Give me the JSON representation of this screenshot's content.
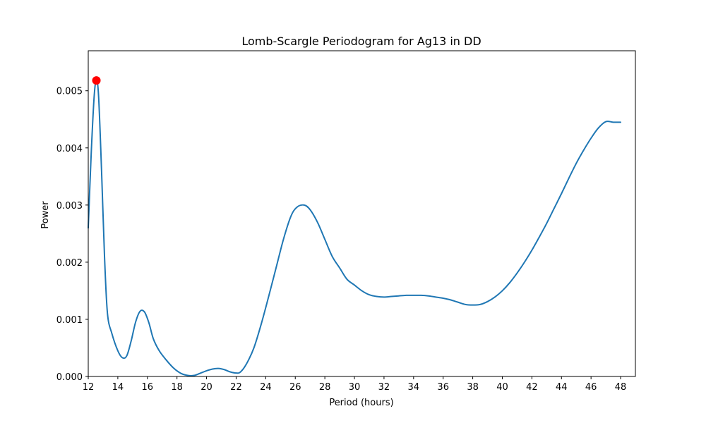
{
  "chart_data": {
    "type": "line",
    "title": "Lomb-Scargle Periodogram for Ag13 in DD",
    "xlabel": "Period (hours)",
    "ylabel": "Power",
    "xlim": [
      12,
      49
    ],
    "ylim": [
      0,
      0.0057
    ],
    "xticks": [
      12,
      14,
      16,
      18,
      20,
      22,
      24,
      26,
      28,
      30,
      32,
      34,
      36,
      38,
      40,
      42,
      44,
      46,
      48
    ],
    "xtick_labels": [
      "12",
      "14",
      "16",
      "18",
      "20",
      "22",
      "24",
      "26",
      "28",
      "30",
      "32",
      "34",
      "36",
      "38",
      "40",
      "42",
      "44",
      "46",
      "48"
    ],
    "yticks": [
      0,
      0.001,
      0.002,
      0.003,
      0.004,
      0.005
    ],
    "ytick_labels": [
      "0.000",
      "0.001",
      "0.002",
      "0.003",
      "0.004",
      "0.005"
    ],
    "grid": false,
    "series": [
      {
        "color": "#1f77b4",
        "x": [
          12.0,
          12.2,
          12.4,
          12.55,
          12.7,
          12.9,
          13.1,
          13.3,
          13.6,
          14.0,
          14.3,
          14.6,
          14.9,
          15.2,
          15.5,
          15.8,
          16.1,
          16.4,
          16.8,
          17.3,
          17.8,
          18.3,
          18.8,
          19.2,
          19.6,
          20.0,
          20.4,
          20.8,
          21.2,
          21.6,
          22.0,
          22.3,
          22.7,
          23.2,
          23.7,
          24.2,
          24.7,
          25.2,
          25.7,
          26.1,
          26.6,
          27.0,
          27.5,
          28.0,
          28.5,
          29.0,
          29.5,
          30.0,
          30.5,
          31.0,
          31.5,
          32.0,
          32.5,
          33.0,
          33.5,
          34.0,
          34.5,
          35.0,
          35.5,
          36.0,
          36.5,
          37.0,
          37.5,
          38.0,
          38.5,
          39.0,
          39.5,
          40.0,
          40.5,
          41.0,
          41.5,
          42.0,
          42.5,
          43.0,
          43.5,
          44.0,
          44.5,
          45.0,
          45.5,
          46.0,
          46.5,
          47.0,
          47.5,
          48.0
        ],
        "y": [
          0.0026,
          0.0039,
          0.0049,
          0.00518,
          0.0049,
          0.0036,
          0.0021,
          0.0011,
          0.00075,
          0.00045,
          0.00033,
          0.00036,
          0.00062,
          0.00095,
          0.00114,
          0.00113,
          0.00094,
          0.00066,
          0.00045,
          0.00028,
          0.00014,
          5e-05,
          1.5e-05,
          2e-05,
          6e-05,
          0.0001,
          0.00013,
          0.00014,
          0.00012,
          8e-05,
          6e-05,
          8e-05,
          0.00022,
          0.0005,
          0.00092,
          0.0014,
          0.0019,
          0.0024,
          0.0028,
          0.00296,
          0.003,
          0.00292,
          0.0027,
          0.0024,
          0.0021,
          0.0019,
          0.0017,
          0.0016,
          0.0015,
          0.00143,
          0.0014,
          0.00139,
          0.0014,
          0.00141,
          0.00142,
          0.00142,
          0.00142,
          0.00141,
          0.00139,
          0.00137,
          0.00134,
          0.0013,
          0.00126,
          0.00125,
          0.00126,
          0.00131,
          0.00139,
          0.0015,
          0.00164,
          0.00181,
          0.002,
          0.00221,
          0.00244,
          0.00268,
          0.00294,
          0.0032,
          0.00347,
          0.00373,
          0.00396,
          0.00417,
          0.00435,
          0.00446,
          0.00445,
          0.00445
        ]
      }
    ],
    "highlight_point": {
      "x": 12.55,
      "y": 0.00518,
      "color": "#ff0000"
    }
  }
}
